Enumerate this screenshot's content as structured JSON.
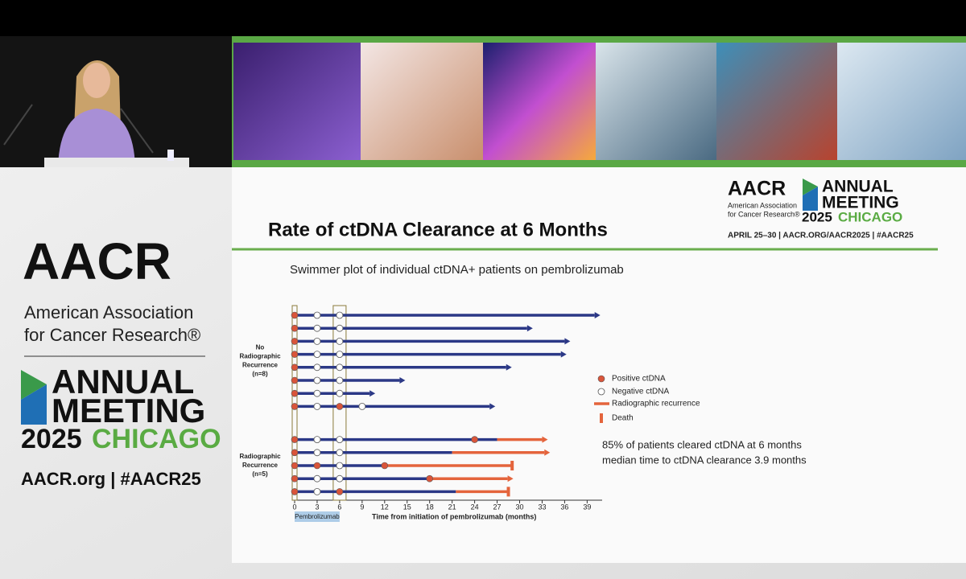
{
  "speaker_panel": {
    "logo": "AACR",
    "org_lines": [
      "American Association",
      "for Cancer Research®"
    ],
    "meeting_lines": [
      "ANNUAL",
      "MEETING"
    ],
    "year": "2025",
    "city": "CHICAGO",
    "links": "AACR.org | #AACR25"
  },
  "slide": {
    "logo": "AACR",
    "org_lines": [
      "American Association",
      "for Cancer Research®"
    ],
    "meeting_lines": [
      "ANNUAL",
      "MEETING"
    ],
    "year": "2025",
    "city": "CHICAGO",
    "dates": "APRIL 25–30 | AACR.ORG/AACR2025 | #AACR25",
    "title": "Rate of ctDNA Clearance at 6 Months",
    "subtitle": "Swimmer plot of individual ctDNA+ patients on pembrolizumab"
  },
  "chart_data": {
    "type": "swimmer",
    "xlabel": "Time from initiation of pembrolizumab (months)",
    "xlim": [
      0,
      41
    ],
    "xticks": [
      0,
      3,
      6,
      9,
      12,
      15,
      18,
      21,
      24,
      27,
      30,
      33,
      36,
      39
    ],
    "treatment": {
      "label": "Pembrolizumab",
      "start": 0,
      "end": 6
    },
    "colors": {
      "on_treatment": "#2b3886",
      "recurrence": "#e4643c",
      "positive": "#d9553a",
      "negative": "#ffffff"
    },
    "legend": {
      "positive": "Positive ctDNA",
      "negative": "Negative ctDNA",
      "recurrence": "Radiographic recurrence",
      "death": "Death"
    },
    "annotations": [
      "85% of patients cleared ctDNA at 6 months",
      "median time to ctDNA clearance 3.9 months"
    ],
    "groups": [
      {
        "label_lines": [
          "No",
          "Radiographic",
          "Recurrence",
          "(n=8)"
        ],
        "patients": [
          {
            "end": 40,
            "recurrence_start": null,
            "positive": [
              0
            ],
            "negative": [
              3,
              6
            ],
            "death": false
          },
          {
            "end": 31,
            "recurrence_start": null,
            "positive": [
              0
            ],
            "negative": [
              3,
              6
            ],
            "death": false
          },
          {
            "end": 36,
            "recurrence_start": null,
            "positive": [
              0
            ],
            "negative": [
              3,
              6
            ],
            "death": false
          },
          {
            "end": 35.5,
            "recurrence_start": null,
            "positive": [
              0
            ],
            "negative": [
              3,
              6
            ],
            "death": false
          },
          {
            "end": 28.2,
            "recurrence_start": null,
            "positive": [
              0
            ],
            "negative": [
              3,
              6
            ],
            "death": false
          },
          {
            "end": 14,
            "recurrence_start": null,
            "positive": [
              0
            ],
            "negative": [
              3,
              6
            ],
            "death": false
          },
          {
            "end": 10,
            "recurrence_start": null,
            "positive": [
              0
            ],
            "negative": [
              3,
              6
            ],
            "death": false
          },
          {
            "end": 26,
            "recurrence_start": null,
            "positive": [
              0,
              6
            ],
            "negative": [
              3,
              9
            ],
            "death": false
          }
        ]
      },
      {
        "label_lines": [
          "Radiographic",
          "Recurrence",
          "(n=5)"
        ],
        "patients": [
          {
            "end": 33,
            "recurrence_start": 27,
            "positive": [
              0,
              24
            ],
            "negative": [
              3,
              6
            ],
            "death": false
          },
          {
            "end": 33.3,
            "recurrence_start": 21,
            "positive": [
              0
            ],
            "negative": [
              3,
              6
            ],
            "death": false
          },
          {
            "end": 29,
            "recurrence_start": 12,
            "positive": [
              0,
              3,
              12
            ],
            "negative": [
              6
            ],
            "death": true
          },
          {
            "end": 28.4,
            "recurrence_start": 18,
            "positive": [
              0,
              18
            ],
            "negative": [
              3,
              6
            ],
            "death": false
          },
          {
            "end": 28.5,
            "recurrence_start": 21.5,
            "positive": [
              0,
              6
            ],
            "negative": [
              3
            ],
            "death": true
          }
        ]
      }
    ]
  }
}
